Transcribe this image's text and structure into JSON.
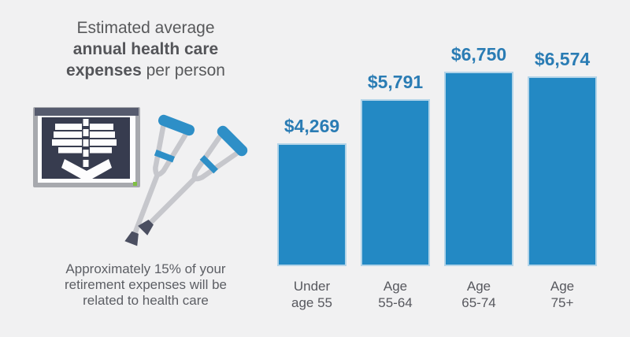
{
  "background_color": "#f1f1f2",
  "title": {
    "line1": "Estimated average",
    "line2": "annual health care",
    "line3_bold": "expenses",
    "line3_rest": " per person"
  },
  "caption": {
    "line1": "Approximately 15% of your",
    "line2": "retirement expenses will be",
    "line3": "related to health care"
  },
  "illustration": {
    "icons": [
      "xray-lightbox-icon",
      "crutch-icon"
    ],
    "colors": {
      "frame_gray": "#a7a9ae",
      "screen_navy": "#373c4f",
      "rail_slate": "#565b6e",
      "bone_white": "#fdfdfe",
      "led_green": "#7fbf43",
      "crutch_gray": "#c6c7cc",
      "crutch_blue": "#2e8fc7",
      "tip_dark": "#4b4f61"
    }
  },
  "chart_data": {
    "type": "bar",
    "title": "Estimated average annual health care expenses per person",
    "categories": [
      "Under age 55",
      "Age 55-64",
      "Age 65-74",
      "Age 75+"
    ],
    "category_lines": [
      [
        "Under",
        "age 55"
      ],
      [
        "Age",
        "55-64"
      ],
      [
        "Age",
        "65-74"
      ],
      [
        "Age",
        "75+"
      ]
    ],
    "values": [
      4269,
      5791,
      6750,
      6574
    ],
    "value_labels": [
      "$4,269",
      "$5,791",
      "$6,750",
      "$6,574"
    ],
    "xlabel": "",
    "ylabel": "",
    "ylim": [
      0,
      8000
    ],
    "grid": false,
    "legend": false,
    "bar_color": "#2389c4",
    "bar_edge_color": "#b3d4e8",
    "value_label_color": "#2a7cb4",
    "axis_label_color": "#57585e"
  }
}
